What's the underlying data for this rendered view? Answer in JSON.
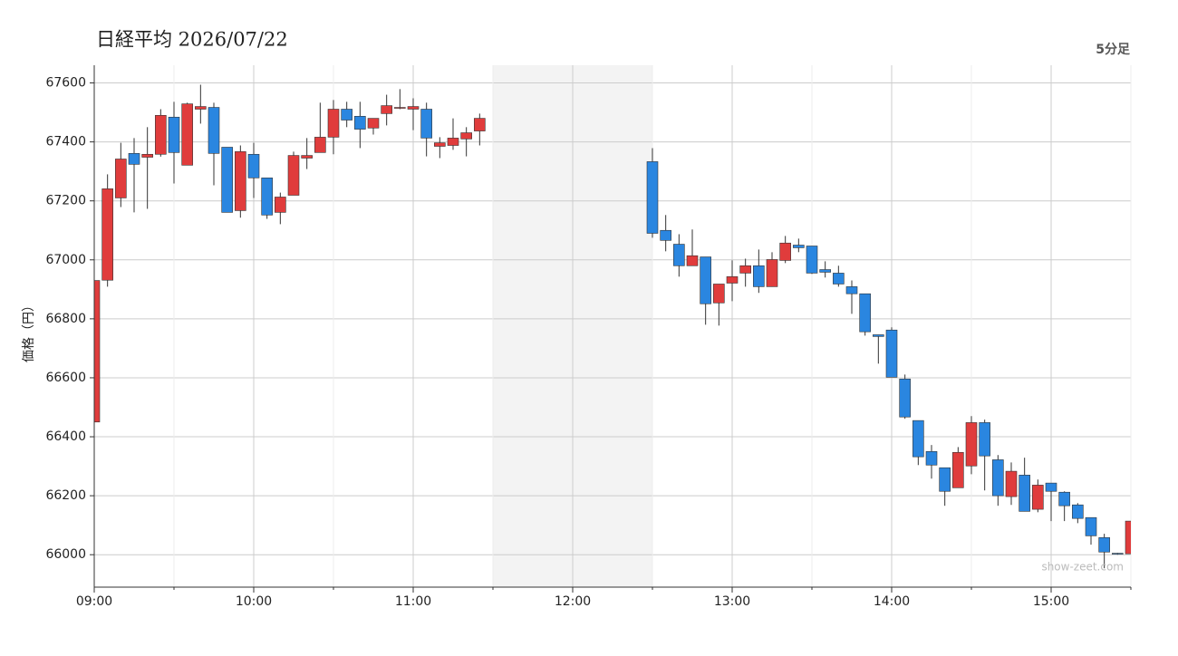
{
  "chart_data": {
    "type": "candlestick",
    "title": "日経平均 2026/07/22",
    "subtitle": "5分足",
    "y_label": "価格（円）",
    "watermark": "show-zeet.com",
    "up_color": "#e03c3c",
    "down_color": "#2a86e0",
    "grid": true,
    "shaded": [
      "11:30",
      "12:30"
    ],
    "xlim": [
      "09:00",
      "15:30"
    ],
    "xticks": [
      "09:00",
      "10:00",
      "11:00",
      "12:00",
      "13:00",
      "14:00",
      "15:00"
    ],
    "ylim": [
      65890,
      67660
    ],
    "yticks": [
      66000,
      66200,
      66400,
      66600,
      66800,
      67000,
      67200,
      67400,
      67600
    ],
    "x": [
      "09:00",
      "09:05",
      "09:10",
      "09:15",
      "09:20",
      "09:25",
      "09:30",
      "09:35",
      "09:40",
      "09:45",
      "09:50",
      "09:55",
      "10:00",
      "10:05",
      "10:10",
      "10:15",
      "10:20",
      "10:25",
      "10:30",
      "10:35",
      "10:40",
      "10:45",
      "10:50",
      "10:55",
      "11:00",
      "11:05",
      "11:10",
      "11:15",
      "11:20",
      "11:25",
      "12:30",
      "12:35",
      "12:40",
      "12:45",
      "12:50",
      "12:55",
      "13:00",
      "13:05",
      "13:10",
      "13:15",
      "13:20",
      "13:25",
      "13:30",
      "13:35",
      "13:40",
      "13:45",
      "13:50",
      "13:55",
      "14:00",
      "14:05",
      "14:10",
      "14:15",
      "14:20",
      "14:25",
      "14:30",
      "14:35",
      "14:40",
      "14:45",
      "14:50",
      "14:55",
      "15:00",
      "15:05",
      "15:10",
      "15:15",
      "15:20",
      "15:25",
      "15:30"
    ],
    "open": [
      66450,
      66931,
      67210,
      67361,
      67348,
      67358,
      67484,
      67321,
      67511,
      67517,
      67382,
      67167,
      67358,
      67278,
      67161,
      67219,
      67345,
      67364,
      67416,
      67511,
      67487,
      67447,
      67496,
      67515,
      67511,
      67511,
      67385,
      67388,
      67410,
      67437,
      67333,
      67100,
      67053,
      66980,
      67010,
      66854,
      66921,
      66955,
      66980,
      66909,
      66998,
      67050,
      67047,
      66967,
      66955,
      66909,
      66885,
      66746,
      66762,
      66596,
      66455,
      66350,
      66295,
      66227,
      66301,
      66448,
      66322,
      66197,
      66270,
      66154,
      66243,
      66212,
      66169,
      66126,
      66058,
      66005,
      66003
    ],
    "high": [
      66930,
      67290,
      67397,
      67413,
      67450,
      67511,
      67536,
      67533,
      67594,
      67533,
      67382,
      67388,
      67397,
      67278,
      67228,
      67367,
      67413,
      67533,
      67542,
      67536,
      67536,
      67480,
      67560,
      67579,
      67548,
      67533,
      67416,
      67480,
      67450,
      67496,
      67379,
      67152,
      67087,
      67103,
      67010,
      66918,
      66998,
      67004,
      67035,
      67026,
      67081,
      67072,
      67047,
      66995,
      66980,
      66930,
      66885,
      66746,
      66771,
      66611,
      66455,
      66372,
      66295,
      66365,
      66470,
      66458,
      66338,
      66313,
      66329,
      66255,
      66243,
      66215,
      66175,
      66126,
      66071,
      66006,
      66114
    ],
    "low": [
      66450,
      66909,
      67179,
      67161,
      67173,
      67350,
      67259,
      67321,
      67462,
      67253,
      67161,
      67143,
      67210,
      67139,
      67121,
      67219,
      67308,
      67364,
      67358,
      67450,
      67379,
      67425,
      67456,
      67511,
      67440,
      67351,
      67345,
      67373,
      67351,
      67388,
      67075,
      67029,
      66943,
      66980,
      66780,
      66777,
      66860,
      66909,
      66888,
      66909,
      66989,
      67026,
      66952,
      66940,
      66909,
      66817,
      66743,
      66648,
      66602,
      66461,
      66304,
      66258,
      66166,
      66227,
      66273,
      66218,
      66166,
      66169,
      66147,
      66144,
      66114,
      66114,
      66107,
      66034,
      65954,
      66000,
      66003
    ],
    "close": [
      66930,
      67241,
      67342,
      67324,
      67358,
      67490,
      67364,
      67529,
      67520,
      67361,
      67161,
      67367,
      67278,
      67152,
      67213,
      67354,
      67354,
      67416,
      67511,
      67474,
      67443,
      67480,
      67523,
      67517,
      67520,
      67413,
      67397,
      67413,
      67431,
      67480,
      67090,
      67066,
      66980,
      67014,
      66851,
      66918,
      66943,
      66980,
      66909,
      67001,
      67057,
      67041,
      66955,
      66958,
      66918,
      66885,
      66756,
      66740,
      66602,
      66467,
      66332,
      66304,
      66215,
      66347,
      66448,
      66335,
      66200,
      66283,
      66147,
      66236,
      66215,
      66166,
      66123,
      66064,
      66009,
      66003,
      66114
    ]
  }
}
